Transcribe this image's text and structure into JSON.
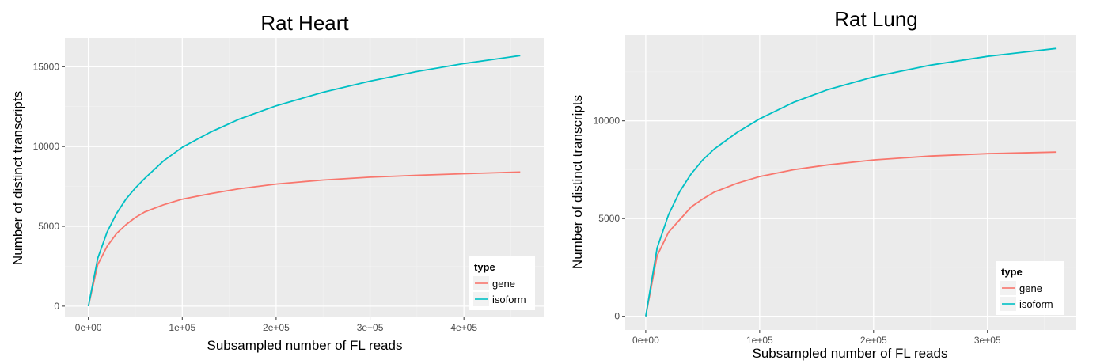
{
  "chart_data": [
    {
      "type": "line",
      "title": "Rat Heart",
      "xlabel": "Subsampled number of FL reads",
      "ylabel": "Number of distinct transcripts",
      "xlim": [
        -25000,
        485000
      ],
      "ylim": [
        -700,
        16800
      ],
      "x_ticks": [
        0,
        100000,
        200000,
        300000,
        400000
      ],
      "x_tick_labels": [
        "0e+00",
        "1e+05",
        "2e+05",
        "3e+05",
        "4e+05"
      ],
      "y_ticks": [
        0,
        5000,
        10000,
        15000
      ],
      "y_tick_labels": [
        "0",
        "5000",
        "10000",
        "15000"
      ],
      "grid": true,
      "legend": {
        "title": "type",
        "position": "bottom-right"
      },
      "series": [
        {
          "name": "gene",
          "color": "#F8766D",
          "x": [
            0,
            10000,
            20000,
            30000,
            40000,
            50000,
            60000,
            80000,
            100000,
            130000,
            160000,
            200000,
            250000,
            300000,
            350000,
            400000,
            460000
          ],
          "y": [
            0,
            2600,
            3750,
            4550,
            5100,
            5550,
            5900,
            6350,
            6700,
            7050,
            7350,
            7650,
            7900,
            8080,
            8200,
            8300,
            8400
          ]
        },
        {
          "name": "isoform",
          "color": "#00BFC4",
          "x": [
            0,
            10000,
            20000,
            30000,
            40000,
            50000,
            60000,
            80000,
            100000,
            130000,
            160000,
            200000,
            250000,
            300000,
            350000,
            400000,
            460000
          ],
          "y": [
            0,
            3000,
            4650,
            5800,
            6700,
            7400,
            8000,
            9100,
            9950,
            10900,
            11700,
            12550,
            13400,
            14100,
            14700,
            15200,
            15700
          ]
        }
      ]
    },
    {
      "type": "line",
      "title": "Rat Lung",
      "xlabel": "Subsampled number of FL reads",
      "ylabel": "Number of distinct transcripts",
      "xlim": [
        -18000,
        378000
      ],
      "ylim": [
        -700,
        14400
      ],
      "x_ticks": [
        0,
        100000,
        200000,
        300000
      ],
      "x_tick_labels": [
        "0e+00",
        "1e+05",
        "2e+05",
        "3e+05"
      ],
      "y_ticks": [
        0,
        5000,
        10000
      ],
      "y_tick_labels": [
        "0",
        "5000",
        "10000"
      ],
      "grid": true,
      "legend": {
        "title": "type",
        "position": "bottom-right"
      },
      "series": [
        {
          "name": "gene",
          "color": "#F8766D",
          "x": [
            0,
            10000,
            20000,
            30000,
            40000,
            50000,
            60000,
            80000,
            100000,
            130000,
            160000,
            200000,
            250000,
            300000,
            360000
          ],
          "y": [
            0,
            3100,
            4300,
            4950,
            5600,
            6000,
            6350,
            6800,
            7150,
            7500,
            7750,
            8000,
            8200,
            8320,
            8400
          ]
        },
        {
          "name": "isoform",
          "color": "#00BFC4",
          "x": [
            0,
            10000,
            20000,
            30000,
            40000,
            50000,
            60000,
            80000,
            100000,
            130000,
            160000,
            200000,
            250000,
            300000,
            360000
          ],
          "y": [
            0,
            3500,
            5200,
            6400,
            7300,
            8000,
            8550,
            9400,
            10100,
            10950,
            11600,
            12250,
            12850,
            13300,
            13700
          ]
        }
      ]
    }
  ]
}
